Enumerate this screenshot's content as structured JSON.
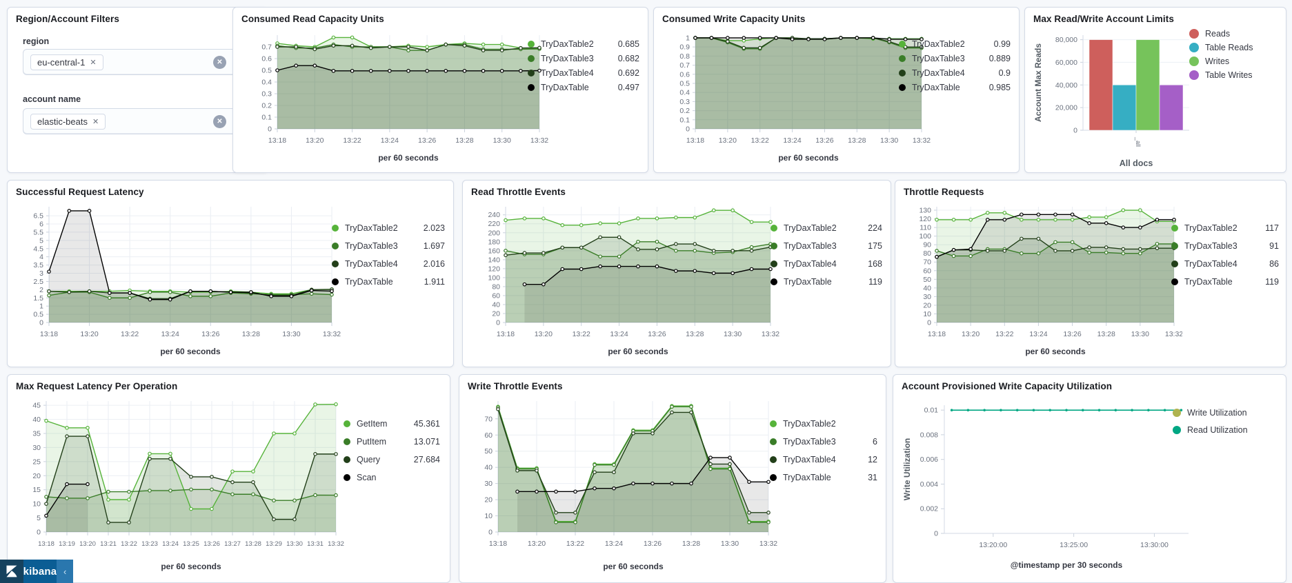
{
  "filters": {
    "title": "Region/Account Filters",
    "remove_icon": "✕",
    "clear_icon": "✕",
    "fields": [
      {
        "label": "region",
        "selected": "eu-central-1"
      },
      {
        "label": "account name",
        "selected": "elastic-beats"
      }
    ]
  },
  "kibana": {
    "label": "kibana",
    "collapse_icon": "‹"
  },
  "charts": [
    {
      "key": "consumed-read",
      "type": "ts",
      "title": "Consumed Read Capacity Units",
      "caption": "per 60 seconds",
      "x_labels": [
        "13:18",
        "13:19",
        "13:20",
        "13:21",
        "13:22",
        "13:23",
        "13:24",
        "13:25",
        "13:26",
        "13:27",
        "13:28",
        "13:29",
        "13:30",
        "13:31",
        "13:32"
      ],
      "label_every": 2,
      "y_ticks": [
        0,
        0.1,
        0.2,
        0.3,
        0.4,
        0.5,
        0.6,
        0.7
      ],
      "y_tick_labels": [
        "0",
        "0.1",
        "0.2",
        "0.3",
        "0.4",
        "0.5",
        "0.6",
        "0.7"
      ],
      "y_max": 0.8,
      "series": [
        {
          "name": "TryDaxTable2",
          "value": "0.685",
          "color": "#56b33a",
          "values": [
            0.73,
            0.71,
            0.7,
            0.78,
            0.78,
            0.7,
            0.7,
            0.71,
            0.7,
            0.72,
            0.73,
            0.72,
            0.72,
            0.69,
            0.685
          ]
        },
        {
          "name": "TryDaxTable3",
          "value": "0.682",
          "color": "#3a7d28",
          "values": [
            0.71,
            0.69,
            0.69,
            0.72,
            0.7,
            0.7,
            0.7,
            0.67,
            0.67,
            0.72,
            0.72,
            0.68,
            0.68,
            0.68,
            0.682
          ]
        },
        {
          "name": "TryDaxTable4",
          "value": "0.692",
          "color": "#223f19",
          "values": [
            0.7,
            0.7,
            0.68,
            0.71,
            0.71,
            0.69,
            0.7,
            0.7,
            0.67,
            0.72,
            0.71,
            0.67,
            0.67,
            0.69,
            0.692
          ]
        },
        {
          "name": "TryDaxTable",
          "value": "0.497",
          "color": "#000000",
          "values": [
            0.5,
            0.54,
            0.54,
            0.495,
            0.495,
            0.495,
            0.495,
            0.495,
            0.495,
            0.495,
            0.495,
            0.495,
            0.495,
            0.495,
            0.497
          ]
        }
      ]
    },
    {
      "key": "consumed-write",
      "type": "ts",
      "title": "Consumed Write Capacity Units",
      "caption": "per 60 seconds",
      "x_labels": [
        "13:18",
        "13:19",
        "13:20",
        "13:21",
        "13:22",
        "13:23",
        "13:24",
        "13:25",
        "13:26",
        "13:27",
        "13:28",
        "13:29",
        "13:30",
        "13:31",
        "13:32"
      ],
      "label_every": 2,
      "y_ticks": [
        0,
        0.1,
        0.2,
        0.3,
        0.4,
        0.5,
        0.6,
        0.7,
        0.8,
        0.9,
        1
      ],
      "y_tick_labels": [
        "0",
        "0.1",
        "0.2",
        "0.3",
        "0.4",
        "0.5",
        "0.6",
        "0.7",
        "0.8",
        "0.9",
        "1"
      ],
      "y_max": 1.03,
      "series": [
        {
          "name": "TryDaxTable2",
          "value": "0.99",
          "color": "#56b33a",
          "values": [
            1,
            1,
            0.97,
            0.97,
            0.99,
            1,
            0.99,
            0.99,
            0.99,
            1,
            1,
            0.99,
            0.99,
            0.99,
            0.99
          ]
        },
        {
          "name": "TryDaxTable3",
          "value": "0.889",
          "color": "#3a7d28",
          "values": [
            1,
            1,
            0.95,
            0.88,
            0.88,
            1,
            1,
            0.985,
            0.985,
            1,
            1,
            1,
            0.95,
            0.889,
            0.889
          ]
        },
        {
          "name": "TryDaxTable4",
          "value": "0.9",
          "color": "#223f19",
          "values": [
            1,
            1,
            0.96,
            0.89,
            0.89,
            1,
            1,
            0.99,
            0.99,
            1,
            1,
            1,
            0.96,
            0.9,
            0.9
          ]
        },
        {
          "name": "TryDaxTable",
          "value": "0.985",
          "color": "#000000",
          "values": [
            1,
            1,
            1,
            1,
            1,
            1,
            0.985,
            0.985,
            0.985,
            1,
            1,
            1,
            0.985,
            0.985,
            0.985
          ]
        }
      ]
    },
    {
      "key": "max-limits",
      "type": "bar",
      "title": "Max Read/Write Account Limits",
      "caption": "All docs",
      "x_tick_label": "_all",
      "ylabel": "Account Max Reads",
      "y_ticks": [
        0,
        20000,
        40000,
        60000,
        80000
      ],
      "y_tick_labels": [
        "0",
        "20,000",
        "40,000",
        "60,000",
        "80,000"
      ],
      "y_max": 84000,
      "series": [
        {
          "name": "Reads",
          "value": 80000,
          "color": "#ce5f5c"
        },
        {
          "name": "Table Reads",
          "value": 40000,
          "color": "#36aec3"
        },
        {
          "name": "Writes",
          "value": 80000,
          "color": "#76c35b"
        },
        {
          "name": "Table Writes",
          "value": 40000,
          "color": "#a55fc7"
        }
      ]
    },
    {
      "key": "successful-latency",
      "type": "ts",
      "title": "Successful Request Latency",
      "caption": "per 60 seconds",
      "x_labels": [
        "13:18",
        "13:19",
        "13:20",
        "13:21",
        "13:22",
        "13:23",
        "13:24",
        "13:25",
        "13:26",
        "13:27",
        "13:28",
        "13:29",
        "13:30",
        "13:31",
        "13:32"
      ],
      "label_every": 2,
      "y_ticks": [
        0,
        0.5,
        1,
        1.5,
        2,
        2.5,
        3,
        3.5,
        4,
        4.5,
        5,
        5.5,
        6,
        6.5
      ],
      "y_tick_labels": [
        "0",
        "0.5",
        "1",
        "1.5",
        "2",
        "2.5",
        "3",
        "3.5",
        "4",
        "4.5",
        "5",
        "5.5",
        "6",
        "6.5"
      ],
      "y_max": 7.05,
      "series": [
        {
          "name": "TryDaxTable2",
          "value": "2.023",
          "color": "#56b33a",
          "values": [
            1.9,
            1.9,
            1.9,
            1.9,
            1.95,
            1.9,
            1.9,
            1.85,
            1.85,
            1.9,
            1.85,
            1.75,
            1.75,
            2.0,
            2.023
          ]
        },
        {
          "name": "TryDaxTable3",
          "value": "1.697",
          "color": "#3a7d28",
          "values": [
            1.65,
            1.85,
            1.85,
            1.5,
            1.5,
            1.85,
            1.85,
            1.6,
            1.6,
            1.8,
            1.75,
            1.7,
            1.7,
            1.75,
            1.697
          ]
        },
        {
          "name": "TryDaxTable4",
          "value": "2.016",
          "color": "#223f19",
          "values": [
            1.9,
            1.85,
            1.9,
            1.8,
            1.8,
            1.45,
            1.45,
            1.9,
            1.9,
            1.85,
            1.8,
            1.65,
            1.65,
            2.0,
            2.016
          ]
        },
        {
          "name": "TryDaxTable",
          "value": "1.911",
          "color": "#000000",
          "values": [
            3.1,
            6.8,
            6.8,
            1.8,
            1.8,
            1.4,
            1.4,
            1.9,
            1.9,
            1.85,
            1.85,
            1.6,
            1.6,
            1.95,
            1.911
          ]
        }
      ]
    },
    {
      "key": "read-throttle",
      "type": "ts",
      "title": "Read Throttle Events",
      "caption": "per 60 seconds",
      "x_labels": [
        "13:18",
        "13:19",
        "13:20",
        "13:21",
        "13:22",
        "13:23",
        "13:24",
        "13:25",
        "13:26",
        "13:27",
        "13:28",
        "13:29",
        "13:30",
        "13:31",
        "13:32"
      ],
      "label_every": 2,
      "y_ticks": [
        0,
        20,
        40,
        60,
        80,
        100,
        120,
        140,
        160,
        180,
        200,
        220,
        240
      ],
      "y_tick_labels": [
        "0",
        "20",
        "40",
        "60",
        "80",
        "100",
        "120",
        "140",
        "160",
        "180",
        "200",
        "220",
        "240"
      ],
      "y_max": 258,
      "series": [
        {
          "name": "TryDaxTable2",
          "value": "224",
          "color": "#56b33a",
          "values": [
            228,
            232,
            232,
            217,
            217,
            221,
            221,
            232,
            232,
            234,
            234,
            250,
            250,
            224,
            224
          ]
        },
        {
          "name": "TryDaxTable3",
          "value": "175",
          "color": "#3a7d28",
          "values": [
            160,
            152,
            152,
            167,
            167,
            147,
            147,
            180,
            180,
            160,
            160,
            155,
            157,
            168,
            175
          ]
        },
        {
          "name": "TryDaxTable4",
          "value": "168",
          "color": "#223f19",
          "values": [
            150,
            155,
            155,
            167,
            167,
            190,
            190,
            163,
            163,
            175,
            175,
            160,
            160,
            160,
            168
          ]
        },
        {
          "name": "TryDaxTable",
          "value": "119",
          "color": "#000000",
          "values": [
            null,
            85,
            85,
            119,
            119,
            125,
            125,
            125,
            125,
            115,
            115,
            110,
            110,
            119,
            119
          ]
        }
      ]
    },
    {
      "key": "throttle-requests",
      "type": "ts",
      "title": "Throttle Requests",
      "caption": "per 60 seconds",
      "x_labels": [
        "13:18",
        "13:19",
        "13:20",
        "13:21",
        "13:22",
        "13:23",
        "13:24",
        "13:25",
        "13:26",
        "13:27",
        "13:28",
        "13:29",
        "13:30",
        "13:31",
        "13:32"
      ],
      "label_every": 2,
      "y_ticks": [
        0,
        10,
        20,
        30,
        40,
        50,
        60,
        70,
        80,
        90,
        100,
        110,
        120,
        130
      ],
      "y_tick_labels": [
        "0",
        "10",
        "20",
        "30",
        "40",
        "50",
        "60",
        "70",
        "80",
        "90",
        "100",
        "110",
        "120",
        "130"
      ],
      "y_max": 134,
      "series": [
        {
          "name": "TryDaxTable2",
          "value": "117",
          "color": "#56b33a",
          "values": [
            119,
            119,
            119,
            127,
            127,
            119,
            119,
            119,
            119,
            122,
            122,
            130,
            130,
            117,
            117
          ]
        },
        {
          "name": "TryDaxTable3",
          "value": "91",
          "color": "#3a7d28",
          "values": [
            83,
            77,
            77,
            85,
            85,
            80,
            80,
            93,
            93,
            81,
            81,
            80,
            80,
            91,
            91
          ]
        },
        {
          "name": "TryDaxTable4",
          "value": "86",
          "color": "#223f19",
          "values": [
            76,
            84,
            84,
            83,
            83,
            97,
            97,
            83,
            83,
            87,
            87,
            85,
            85,
            86,
            86
          ]
        },
        {
          "name": "TryDaxTable",
          "value": "119",
          "color": "#000000",
          "values": [
            76,
            84,
            85,
            119,
            119,
            125,
            125,
            125,
            125,
            115,
            115,
            110,
            110,
            119,
            119
          ]
        }
      ]
    },
    {
      "key": "max-latency-op",
      "type": "ts",
      "title": "Max Request Latency Per Operation",
      "caption": "per 60 seconds",
      "x_labels": [
        "13:18",
        "13:19",
        "13:20",
        "13:21",
        "13:22",
        "13:23",
        "13:24",
        "13:25",
        "13:26",
        "13:27",
        "13:28",
        "13:29",
        "13:30",
        "13:31",
        "13:32"
      ],
      "label_every": 1,
      "y_ticks": [
        0,
        5,
        10,
        15,
        20,
        25,
        30,
        35,
        40,
        45
      ],
      "y_tick_labels": [
        "0",
        "5",
        "10",
        "15",
        "20",
        "25",
        "30",
        "35",
        "40",
        "45"
      ],
      "y_max": 46.5,
      "series": [
        {
          "name": "GetItem",
          "value": "45.361",
          "color": "#56b33a",
          "values": [
            39.5,
            37,
            37,
            11.5,
            11.5,
            27.8,
            27.8,
            8.2,
            8.2,
            21.5,
            21.5,
            35,
            35,
            45.3,
            45.361
          ]
        },
        {
          "name": "PutItem",
          "value": "13.071",
          "color": "#3a7d28",
          "values": [
            12.5,
            12,
            12,
            14.3,
            14.3,
            14.7,
            14.7,
            15.1,
            15.1,
            13.4,
            13.4,
            11.2,
            11.2,
            13.1,
            13.071
          ]
        },
        {
          "name": "Query",
          "value": "27.684",
          "color": "#223f19",
          "values": [
            10,
            34,
            34,
            3.4,
            3.4,
            26,
            26,
            19.6,
            19.6,
            17.7,
            17.7,
            4.5,
            4.5,
            27.7,
            27.684
          ]
        },
        {
          "name": "Scan",
          "value": "",
          "color": "#000000",
          "values": [
            5.8,
            17,
            17,
            null,
            null,
            null,
            null,
            null,
            null,
            null,
            null,
            null,
            null,
            null,
            null
          ]
        }
      ]
    },
    {
      "key": "write-throttle",
      "type": "ts",
      "title": "Write Throttle Events",
      "caption": "per 60 seconds",
      "x_labels": [
        "13:18",
        "13:19",
        "13:20",
        "13:21",
        "13:22",
        "13:23",
        "13:24",
        "13:25",
        "13:26",
        "13:27",
        "13:28",
        "13:29",
        "13:30",
        "13:31",
        "13:32"
      ],
      "label_every": 2,
      "y_ticks": [
        0,
        10,
        20,
        30,
        40,
        50,
        60,
        70
      ],
      "y_tick_labels": [
        "0",
        "10",
        "20",
        "30",
        "40",
        "50",
        "60",
        "70"
      ],
      "y_max": 81,
      "series": [
        {
          "name": "TryDaxTable2",
          "value": "",
          "color": "#56b33a",
          "values": [
            77.5,
            39.5,
            39.5,
            6.5,
            6.5,
            42,
            42,
            63,
            63,
            78,
            78,
            39.5,
            39.5,
            6.5,
            6.5
          ]
        },
        {
          "name": "TryDaxTable3",
          "value": "6",
          "color": "#3a7d28",
          "values": [
            77,
            39,
            39,
            6,
            6,
            41.5,
            41.5,
            62.5,
            62.5,
            77.5,
            77.5,
            39,
            39,
            6,
            6
          ]
        },
        {
          "name": "TryDaxTable4",
          "value": "12",
          "color": "#223f19",
          "values": [
            76,
            38,
            38,
            12,
            12,
            37,
            37,
            61,
            61,
            74,
            74,
            42,
            42,
            12,
            12
          ]
        },
        {
          "name": "TryDaxTable",
          "value": "31",
          "color": "#000000",
          "values": [
            null,
            25,
            25,
            25,
            25,
            27,
            27,
            30,
            30,
            30,
            30,
            46,
            46,
            31,
            31
          ]
        }
      ]
    },
    {
      "key": "account-util",
      "type": "util",
      "title": "Account Provisioned Write Capacity Utilization",
      "caption": "@timestamp per 30 seconds",
      "ylabel": "Write Utilization",
      "x_custom": [
        {
          "f": 0.2,
          "label": "13:20:00"
        },
        {
          "f": 0.53,
          "label": "13:25:00"
        },
        {
          "f": 0.86,
          "label": "13:30:00"
        }
      ],
      "y_ticks": [
        0,
        0.002,
        0.004,
        0.006,
        0.008,
        0.01
      ],
      "y_tick_labels": [
        "0",
        "0.002",
        "0.004",
        "0.006",
        "0.008",
        "0.01"
      ],
      "y_max": 0.0104,
      "series": [
        {
          "name": "Write Utilization",
          "value": "",
          "color": "#afb34f",
          "values": []
        },
        {
          "name": "Read Utilization",
          "value": "",
          "color": "#00a783",
          "values": [
            0.01,
            0.01,
            0.01,
            0.01,
            0.01,
            0.01,
            0.01,
            0.01,
            0.01,
            0.01,
            0.01,
            0.01,
            0.01,
            0.01,
            0.01
          ]
        }
      ]
    }
  ]
}
